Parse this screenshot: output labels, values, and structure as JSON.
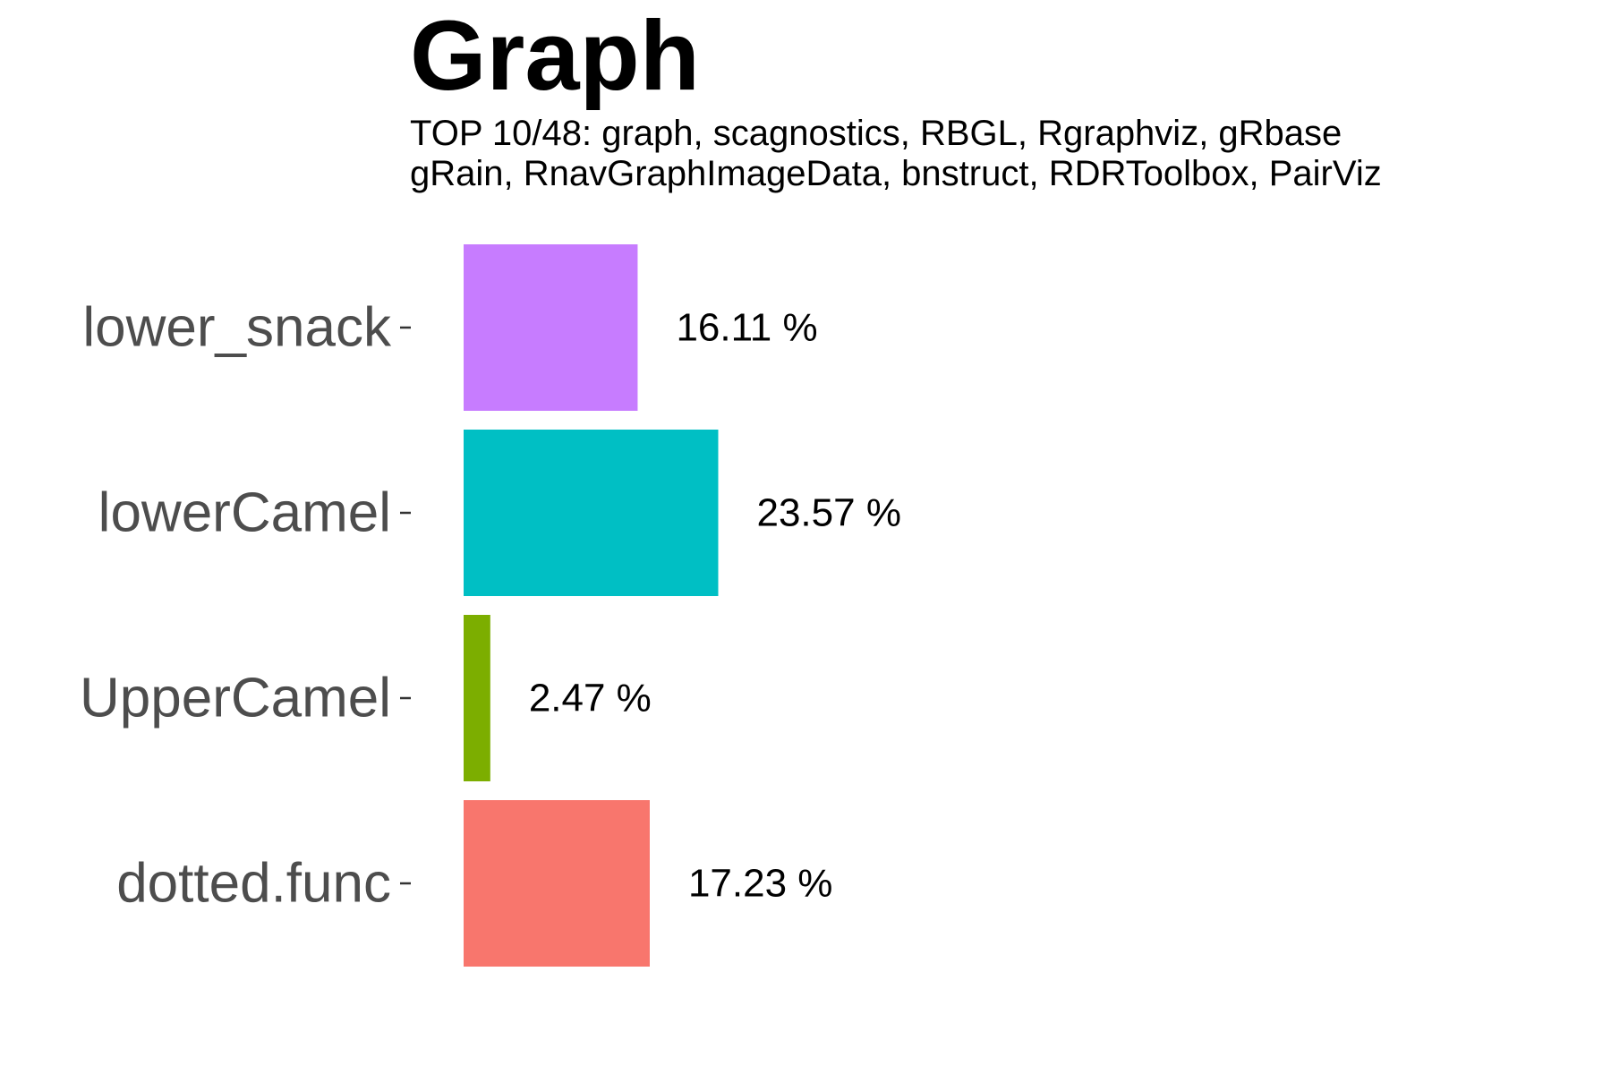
{
  "chart_data": {
    "type": "bar",
    "orientation": "horizontal",
    "title": "Graph",
    "subtitle_lines": [
      "TOP 10/48: graph, scagnostics, RBGL, Rgraphviz, gRbase",
      "gRain, RnavGraphImageData, bnstruct, RDRToolbox, PairViz"
    ],
    "categories": [
      "lower_snack",
      "lowerCamel",
      "UpperCamel",
      "dotted.func"
    ],
    "values": [
      16.11,
      23.57,
      2.47,
      17.23
    ],
    "labels": [
      "16.11 %",
      "23.57 %",
      "2.47 %",
      "17.23 %"
    ],
    "colors": [
      "#C77CFF",
      "#00BFC4",
      "#7CAE00",
      "#F8766D"
    ],
    "xlabel": "",
    "ylabel": "",
    "xlim": [
      0,
      100
    ],
    "grid": false,
    "legend": "none"
  }
}
